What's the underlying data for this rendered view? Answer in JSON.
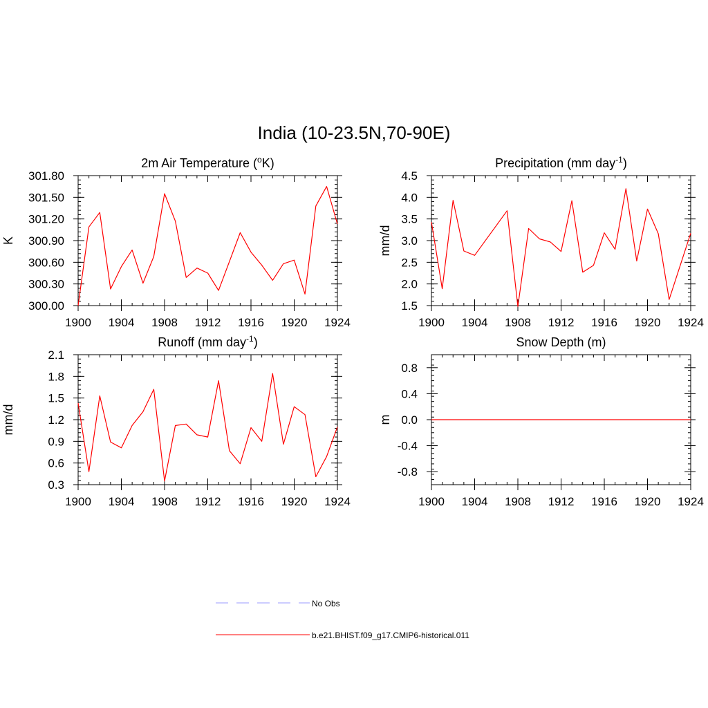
{
  "figure": {
    "title": "India (10-23.5N,70-90E)"
  },
  "legend": {
    "entries": [
      {
        "label": "No Obs",
        "color": "#9999ff",
        "dash": true
      },
      {
        "label": "b.e21.BHIST.f09_g17.CMIP6-historical.011",
        "color": "#ff0000",
        "dash": false
      }
    ]
  },
  "chart_data": [
    {
      "type": "line",
      "title": "2m Air Temperature (",
      "title_sup": "o",
      "title_tail": "K)",
      "ylabel": "K",
      "xlim": [
        1900,
        1924
      ],
      "ylim": [
        300.0,
        301.8
      ],
      "xticks": [
        1900,
        1904,
        1908,
        1912,
        1916,
        1920,
        1924
      ],
      "yticks": [
        "300.00",
        "300.30",
        "300.60",
        "300.90",
        "301.20",
        "301.50",
        "301.80"
      ],
      "series": [
        {
          "color": "#ff0000",
          "x": [
            1900,
            1901,
            1902,
            1903,
            1904,
            1905,
            1906,
            1907,
            1908,
            1909,
            1910,
            1911,
            1912,
            1913,
            1914,
            1915,
            1916,
            1917,
            1918,
            1919,
            1920,
            1921,
            1922,
            1923,
            1924
          ],
          "values": [
            300.0,
            301.09,
            301.29,
            300.23,
            300.54,
            300.77,
            300.31,
            300.68,
            301.55,
            301.17,
            300.39,
            300.52,
            300.45,
            300.21,
            300.61,
            301.01,
            300.74,
            300.56,
            300.35,
            300.58,
            300.63,
            300.16,
            301.38,
            301.65,
            301.13
          ]
        }
      ]
    },
    {
      "type": "line",
      "title": "Precipitation (mm day",
      "title_sup": "-1",
      "title_tail": ")",
      "ylabel": "mm/d",
      "xlim": [
        1900,
        1924
      ],
      "ylim": [
        1.5,
        4.5
      ],
      "xticks": [
        1900,
        1904,
        1908,
        1912,
        1916,
        1920,
        1924
      ],
      "yticks": [
        "1.5",
        "2.0",
        "2.5",
        "3.0",
        "3.5",
        "4.0",
        "4.5"
      ],
      "series": [
        {
          "color": "#ff0000",
          "x": [
            1900,
            1901,
            1902,
            1903,
            1904,
            1907,
            1908,
            1909,
            1910,
            1911,
            1912,
            1913,
            1914,
            1915,
            1916,
            1917,
            1918,
            1919,
            1920,
            1921,
            1922,
            1924
          ],
          "values": [
            3.43,
            1.89,
            3.93,
            2.76,
            2.66,
            3.69,
            1.48,
            3.28,
            3.04,
            2.97,
            2.75,
            3.92,
            2.27,
            2.43,
            3.18,
            2.8,
            4.2,
            2.53,
            3.73,
            3.16,
            1.64,
            3.17
          ]
        }
      ]
    },
    {
      "type": "line",
      "title": "Runoff (mm day",
      "title_sup": "-1",
      "title_tail": ")",
      "ylabel": "mm/d",
      "xlim": [
        1900,
        1924
      ],
      "ylim": [
        0.3,
        2.1
      ],
      "xticks": [
        1900,
        1904,
        1908,
        1912,
        1916,
        1920,
        1924
      ],
      "yticks": [
        "0.3",
        "0.6",
        "0.9",
        "1.2",
        "1.5",
        "1.8",
        "2.1"
      ],
      "series": [
        {
          "color": "#ff0000",
          "x": [
            1900,
            1901,
            1902,
            1903,
            1904,
            1905,
            1906,
            1907,
            1908,
            1909,
            1910,
            1911,
            1912,
            1913,
            1914,
            1915,
            1916,
            1917,
            1918,
            1919,
            1920,
            1921,
            1922,
            1923,
            1924
          ],
          "values": [
            1.43,
            0.48,
            1.53,
            0.89,
            0.81,
            1.12,
            1.31,
            1.62,
            0.35,
            1.12,
            1.14,
            0.99,
            0.96,
            1.74,
            0.77,
            0.59,
            1.09,
            0.9,
            1.84,
            0.86,
            1.38,
            1.27,
            0.41,
            0.69,
            1.1
          ]
        }
      ]
    },
    {
      "type": "line",
      "title": "Snow Depth (m)",
      "title_sup": "",
      "title_tail": "",
      "ylabel": "m",
      "xlim": [
        1900,
        1924
      ],
      "ylim": [
        -1.0,
        1.0
      ],
      "xticks": [
        1900,
        1904,
        1908,
        1912,
        1916,
        1920,
        1924
      ],
      "yticks": [
        "-0.8",
        "-0.4",
        "0.0",
        "0.4",
        "0.8"
      ],
      "ytick_values": [
        -0.8,
        -0.4,
        0.0,
        0.4,
        0.8
      ],
      "series": [
        {
          "color": "#ff0000",
          "x": [
            1900,
            1924
          ],
          "values": [
            0.0,
            0.0
          ]
        }
      ]
    }
  ]
}
